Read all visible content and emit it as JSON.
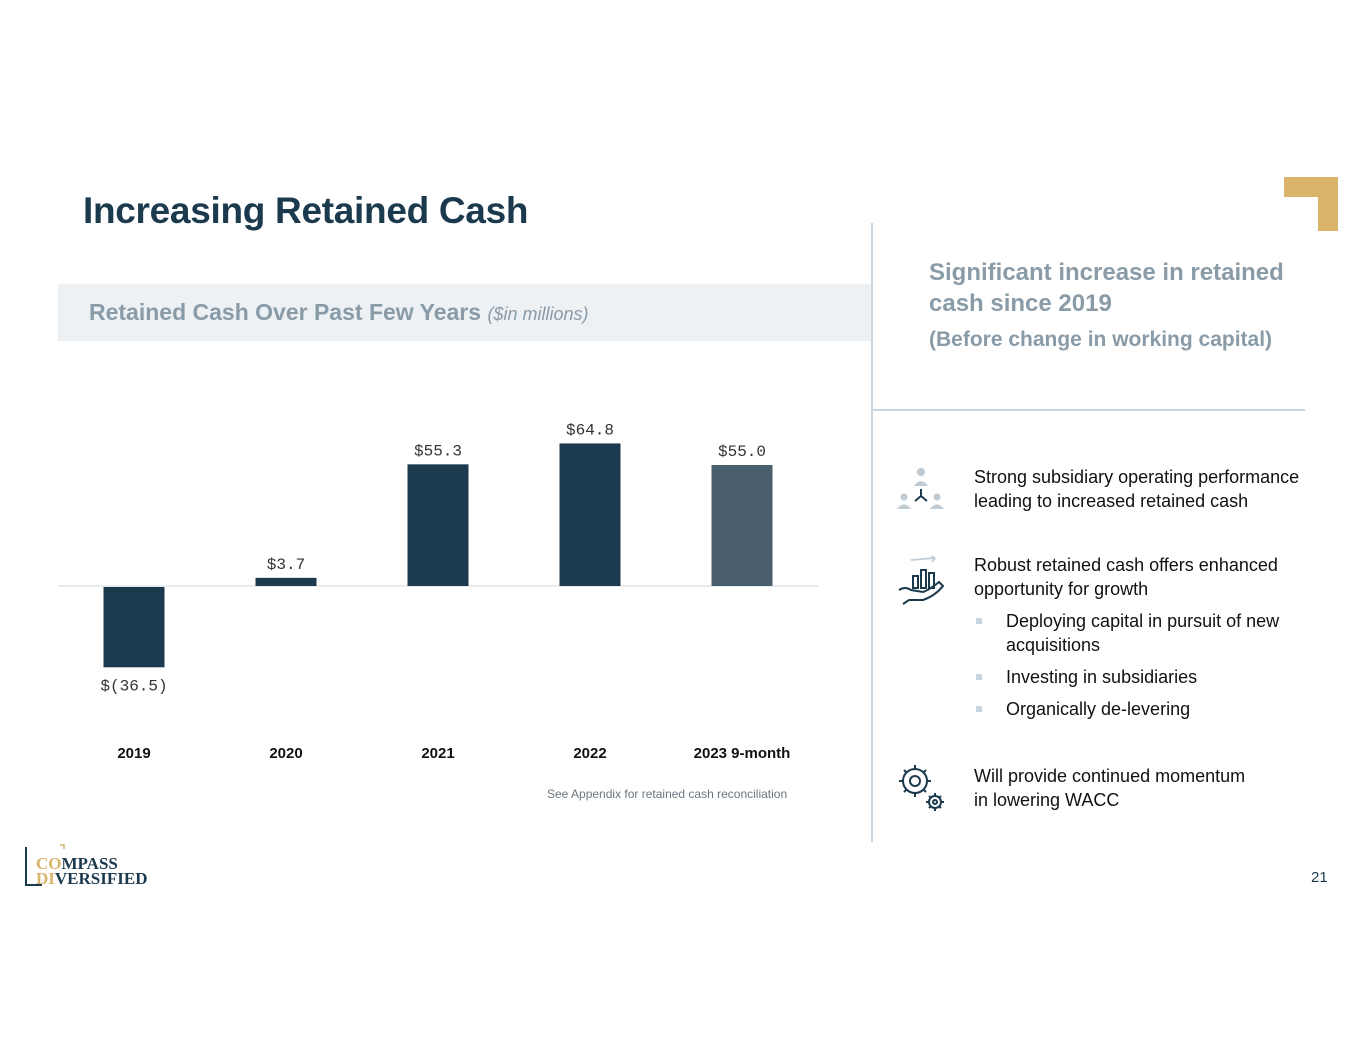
{
  "page": {
    "title": "Increasing Retained Cash",
    "page_number": "21",
    "brand_accent": "#d9b46a",
    "primary_color": "#1c3a4e"
  },
  "chart_panel": {
    "subtitle": "Retained Cash Over Past Few Years",
    "unit_note": "($in millions)",
    "footnote": "See Appendix for retained cash reconciliation"
  },
  "chart_data": {
    "type": "bar",
    "title": "Retained Cash Over Past Few Years ($in millions)",
    "categories": [
      "2019",
      "2020",
      "2021",
      "2022",
      "2023 9-month"
    ],
    "values": [
      -36.5,
      3.7,
      55.3,
      64.8,
      55.0
    ],
    "value_labels": [
      "$(36.5)",
      "$3.7",
      "$55.3",
      "$64.8",
      "$55.0"
    ],
    "bar_colors": [
      "#1c3a4e",
      "#1c3a4e",
      "#1c3a4e",
      "#1c3a4e",
      "#4a5f6d"
    ],
    "xlabel": "",
    "ylabel": "",
    "ylim": [
      -40,
      70
    ],
    "grid": false,
    "legend": "none"
  },
  "right_panel": {
    "heading": "Significant increase in retained cash since 2019",
    "subheading": "(Before change in working capital)",
    "points": [
      {
        "icon": "people-network-icon",
        "text_line1": "Strong subsidiary operating performance",
        "text_line2": "leading to increased retained cash"
      },
      {
        "icon": "hand-growth-chart-icon",
        "text_line1": "Robust retained cash offers enhanced",
        "text_line2": "opportunity for growth",
        "sub_items": [
          "Deploying capital in pursuit of new acquisitions",
          "Investing in subsidiaries",
          "Organically de-levering"
        ]
      },
      {
        "icon": "gears-icon",
        "text_line1": "Will provide continued momentum",
        "text_line2": "in lowering WACC"
      }
    ]
  },
  "logo": {
    "line1_accent": "CO",
    "line1_rest": "MPASS",
    "line2_accent": "DI",
    "line2_rest": "VERSIFIED"
  }
}
